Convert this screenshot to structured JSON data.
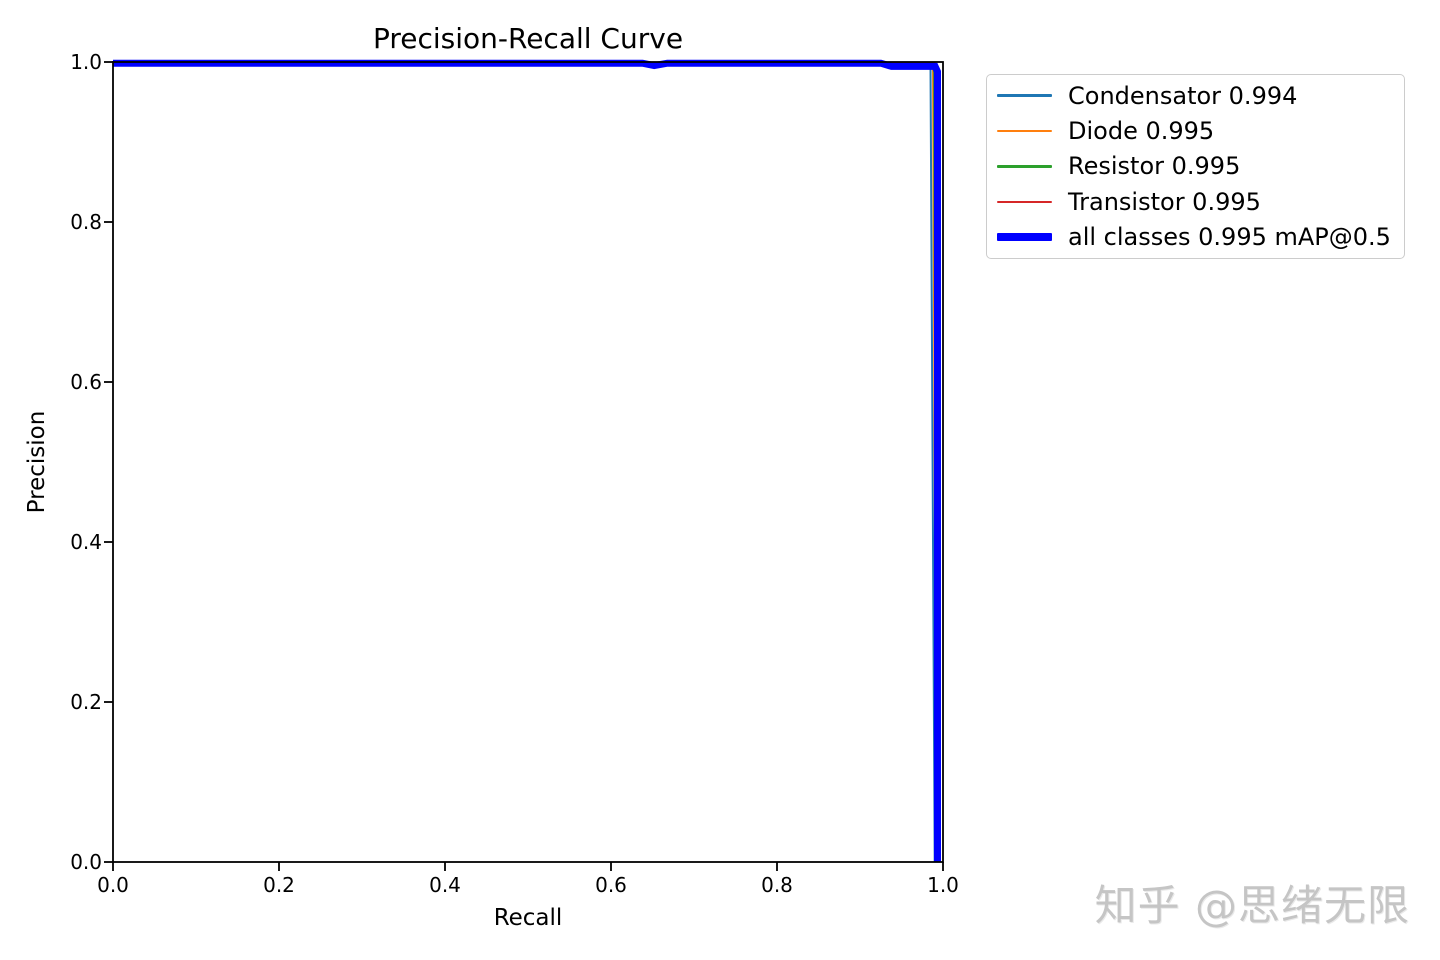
{
  "figure": {
    "watermark": "知乎 @思绪无限"
  },
  "chart_data": {
    "type": "line",
    "title": "Precision-Recall Curve",
    "xlabel": "Recall",
    "ylabel": "Precision",
    "xlim": [
      0.0,
      1.0
    ],
    "ylim": [
      0.0,
      1.0
    ],
    "xticks": [
      "0.0",
      "0.2",
      "0.4",
      "0.6",
      "0.8",
      "1.0"
    ],
    "yticks": [
      "0.0",
      "0.2",
      "0.4",
      "0.6",
      "0.8",
      "1.0"
    ],
    "grid": false,
    "legend_position": "outside-upper-right",
    "axis_color": "#000000",
    "series": [
      {
        "name": "Condensator",
        "ap": 0.994,
        "label": "Condensator 0.994",
        "color": "#1f77b4",
        "width": "thin",
        "points": [
          [
            0.0,
            0.999
          ],
          [
            0.985,
            0.998
          ],
          [
            0.99,
            0.0
          ]
        ]
      },
      {
        "name": "Diode",
        "ap": 0.995,
        "label": "Diode 0.995",
        "color": "#ff7f0e",
        "width": "thin",
        "points": [
          [
            0.0,
            0.999
          ],
          [
            0.988,
            0.998
          ],
          [
            0.992,
            0.0
          ]
        ]
      },
      {
        "name": "Resistor",
        "ap": 0.995,
        "label": "Resistor 0.995",
        "color": "#2ca02c",
        "width": "thin",
        "points": [
          [
            0.0,
            0.999
          ],
          [
            0.989,
            0.998
          ],
          [
            0.993,
            0.0
          ]
        ]
      },
      {
        "name": "Transistor",
        "ap": 0.995,
        "label": "Transistor 0.995",
        "color": "#d62728",
        "width": "thin",
        "points": [
          [
            0.0,
            0.999
          ],
          [
            0.99,
            0.998
          ],
          [
            0.994,
            0.0
          ]
        ]
      },
      {
        "name": "all classes",
        "ap": 0.995,
        "label": "all classes 0.995 mAP@0.5",
        "color": "#0000ff",
        "width": "thick",
        "points": [
          [
            0.0,
            0.9985
          ],
          [
            0.638,
            0.9985
          ],
          [
            0.652,
            0.9955
          ],
          [
            0.668,
            0.9985
          ],
          [
            0.925,
            0.9985
          ],
          [
            0.938,
            0.9945
          ],
          [
            0.9905,
            0.9945
          ],
          [
            0.9934,
            0.988
          ],
          [
            0.9934,
            0.0
          ]
        ]
      }
    ]
  }
}
